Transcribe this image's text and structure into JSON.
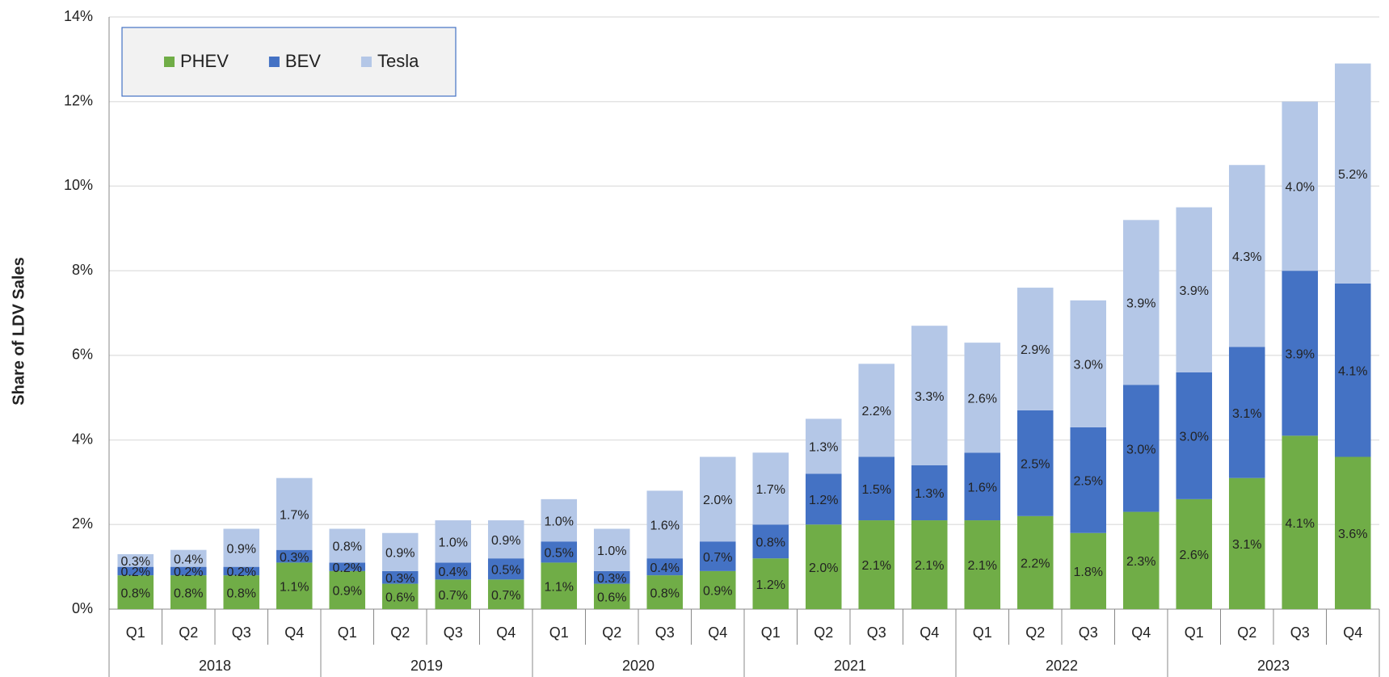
{
  "chart_data": {
    "type": "stacked_bar",
    "y_label": "Share of LDV Sales",
    "categories": [
      "Q1",
      "Q2",
      "Q3",
      "Q4",
      "Q1",
      "Q2",
      "Q3",
      "Q4",
      "Q1",
      "Q2",
      "Q3",
      "Q4",
      "Q1",
      "Q2",
      "Q3",
      "Q4",
      "Q1",
      "Q2",
      "Q3",
      "Q4",
      "Q1",
      "Q2",
      "Q3",
      "Q4"
    ],
    "groups": [
      "2018",
      "2019",
      "2020",
      "2021",
      "2022",
      "2023"
    ],
    "series": [
      {
        "name": "PHEV",
        "color": "#70ad47",
        "values": [
          0.8,
          0.8,
          0.8,
          1.1,
          0.9,
          0.6,
          0.7,
          0.7,
          1.1,
          0.6,
          0.8,
          0.9,
          1.2,
          2.0,
          2.1,
          2.1,
          2.1,
          2.2,
          1.8,
          2.3,
          2.6,
          3.1,
          4.1,
          3.6
        ],
        "value_labels": [
          "0.8%",
          "0.8%",
          "0.8%",
          "1.1%",
          "0.9%",
          "0.6%",
          "0.7%",
          "0.7%",
          "1.1%",
          "0.6%",
          "0.8%",
          "0.9%",
          "1.2%",
          "2.0%",
          "2.1%",
          "2.1%",
          "2.1%",
          "2.2%",
          "1.8%",
          "2.3%",
          "2.6%",
          "3.1%",
          "4.1%",
          "3.6%"
        ]
      },
      {
        "name": "BEV",
        "color": "#4472c4",
        "values": [
          0.2,
          0.2,
          0.2,
          0.3,
          0.2,
          0.3,
          0.4,
          0.5,
          0.5,
          0.3,
          0.4,
          0.7,
          0.8,
          1.2,
          1.5,
          1.3,
          1.6,
          2.5,
          2.5,
          3.0,
          3.0,
          3.1,
          3.9,
          4.1
        ],
        "value_labels": [
          "0.2%",
          "0.2%",
          "0.2%",
          "0.3%",
          "0.2%",
          "0.3%",
          "0.4%",
          "0.5%",
          "0.5%",
          "0.3%",
          "0.4%",
          "0.7%",
          "0.8%",
          "1.2%",
          "1.5%",
          "1.3%",
          "1.6%",
          "2.5%",
          "2.5%",
          "3.0%",
          "3.0%",
          "3.1%",
          "3.9%",
          "4.1%"
        ]
      },
      {
        "name": "Tesla",
        "color": "#b4c7e7",
        "values": [
          0.3,
          0.4,
          0.9,
          1.7,
          0.8,
          0.9,
          1.0,
          0.9,
          1.0,
          1.0,
          1.6,
          2.0,
          1.7,
          1.3,
          2.2,
          3.3,
          2.6,
          2.9,
          3.0,
          3.9,
          3.9,
          4.3,
          4.0,
          5.2
        ],
        "value_labels": [
          "0.3%",
          "0.4%",
          "0.9%",
          "1.7%",
          "0.8%",
          "0.9%",
          "1.0%",
          "0.9%",
          "1.0%",
          "1.0%",
          "1.6%",
          "2.0%",
          "1.7%",
          "1.3%",
          "2.2%",
          "3.3%",
          "2.6%",
          "2.9%",
          "3.0%",
          "3.9%",
          "3.9%",
          "4.3%",
          "4.0%",
          "5.2%"
        ]
      }
    ],
    "ylim": [
      0,
      14
    ],
    "yticks": [
      {
        "value": 0,
        "label": "0%"
      },
      {
        "value": 2,
        "label": "2%"
      },
      {
        "value": 4,
        "label": "4%"
      },
      {
        "value": 6,
        "label": "6%"
      },
      {
        "value": 8,
        "label": "8%"
      },
      {
        "value": 10,
        "label": "10%"
      },
      {
        "value": 12,
        "label": "12%"
      },
      {
        "value": 14,
        "label": "14%"
      }
    ],
    "grid": true,
    "legend": "top-left"
  }
}
